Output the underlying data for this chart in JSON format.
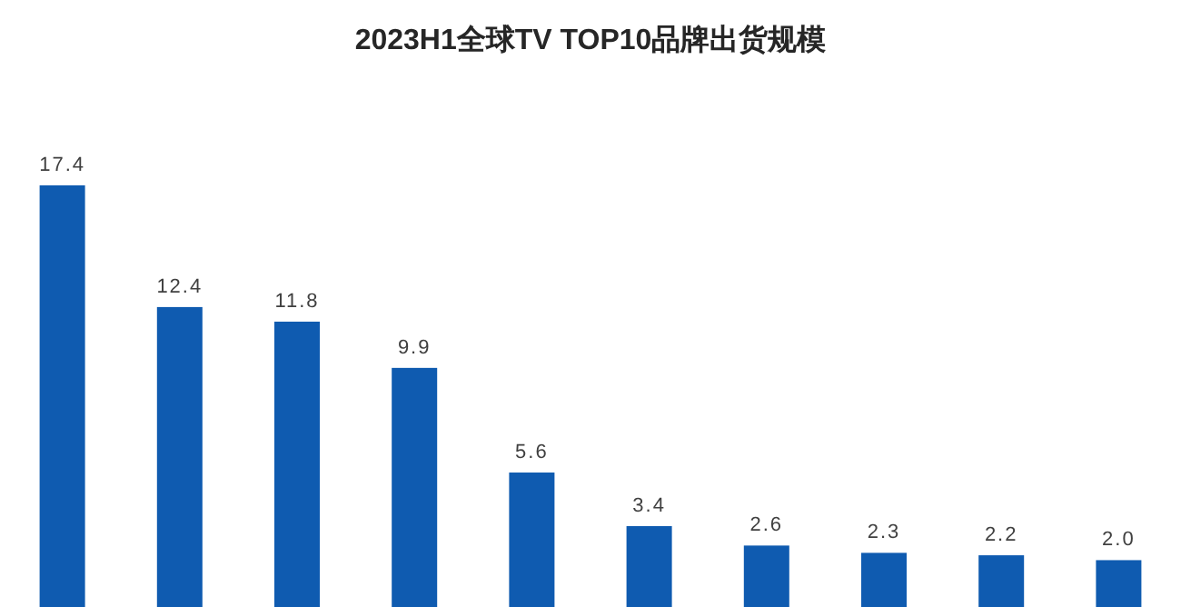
{
  "chart_data": {
    "type": "bar",
    "title": "2023H1全球TV TOP10品牌出货规模",
    "categories": [
      null,
      null,
      null,
      null,
      null,
      null,
      null,
      null,
      null,
      null
    ],
    "values": [
      17.4,
      12.4,
      11.8,
      9.9,
      5.6,
      3.4,
      2.6,
      2.3,
      2.2,
      2.0
    ],
    "value_labels": [
      "17.4",
      "12.4",
      "11.8",
      "9.9",
      "5.6",
      "3.4",
      "2.6",
      "2.3",
      "2.2",
      "2.0"
    ],
    "color": "#0f5bb0"
  }
}
